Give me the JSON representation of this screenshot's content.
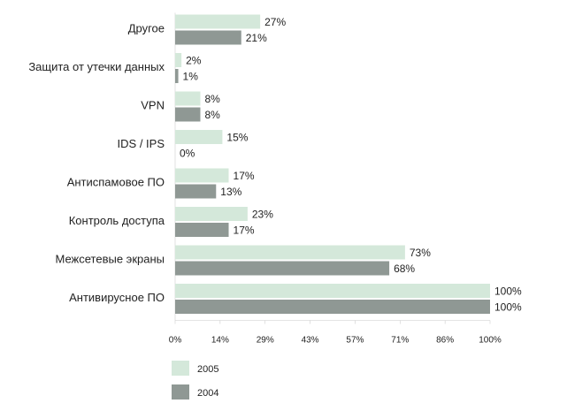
{
  "chart_data": {
    "type": "bar",
    "orientation": "horizontal",
    "categories": [
      "Другое",
      "Защита от утечки данных",
      "VPN",
      "IDS / IPS",
      "Антиспамовое ПО",
      "Контроль доступа",
      "Межсетевые экраны",
      "Антивирусное ПО"
    ],
    "series": [
      {
        "name": "2005",
        "color": "#d4e8da",
        "values": [
          27,
          2,
          8,
          15,
          17,
          23,
          73,
          100
        ],
        "labels": [
          "27%",
          "2%",
          "8%",
          "15%",
          "17%",
          "23%",
          "73%",
          "100%"
        ]
      },
      {
        "name": "2004",
        "color": "#8f9894",
        "values": [
          21,
          1,
          8,
          0,
          13,
          17,
          68,
          100
        ],
        "labels": [
          "21%",
          "1%",
          "8%",
          "0%",
          "13%",
          "17%",
          "68%",
          "100%"
        ]
      }
    ],
    "xlim": [
      0,
      100
    ],
    "x_ticks": [
      "0%",
      "14%",
      "29%",
      "43%",
      "57%",
      "71%",
      "86%",
      "100%"
    ],
    "grid": false,
    "legend_placement": "bottom-left"
  }
}
